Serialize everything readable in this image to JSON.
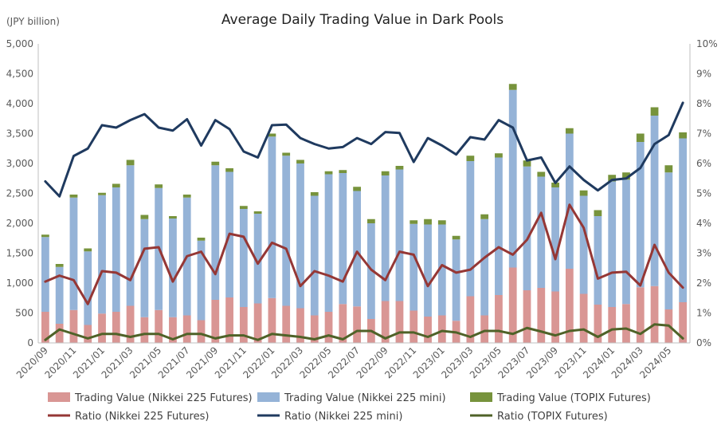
{
  "chart_data": {
    "type": "bar",
    "title": "Average Daily Trading Value in Dark Pools",
    "ylabel_left": "(JPY billion)",
    "ylim_left": [
      0,
      5000
    ],
    "yticks_left": [
      "0",
      "500",
      "1,000",
      "1,500",
      "2,000",
      "2,500",
      "3,000",
      "3,500",
      "4,000",
      "4,500",
      "5,000"
    ],
    "ylim_right": [
      0,
      10
    ],
    "yticks_right": [
      "0%",
      "1%",
      "2%",
      "3%",
      "4%",
      "5%",
      "6%",
      "7%",
      "8%",
      "9%",
      "10%"
    ],
    "xtick_labels": [
      "2020/09",
      "2020/11",
      "2021/01",
      "2021/03",
      "2021/05",
      "2021/07",
      "2021/09",
      "2021/11",
      "2022/01",
      "2022/03",
      "2022/05",
      "2022/07",
      "2022/09",
      "2022/11",
      "2023/01",
      "2023/03",
      "2023/05",
      "2023/07",
      "2023/09",
      "2023/11",
      "2024/01",
      "2024/03",
      "2024/05"
    ],
    "bar_series": [
      {
        "name": "Trading Value (Nikkei 225 Futures)",
        "color": "#d99694",
        "values": [
          520,
          320,
          550,
          300,
          490,
          520,
          620,
          430,
          550,
          430,
          460,
          380,
          720,
          760,
          600,
          660,
          750,
          620,
          580,
          460,
          520,
          650,
          610,
          400,
          700,
          700,
          540,
          440,
          460,
          370,
          780,
          460,
          800,
          1260,
          880,
          920,
          860,
          1240,
          820,
          640,
          600,
          650,
          930,
          950,
          560,
          680
        ]
      },
      {
        "name": "Trading Value (Nikkei 225 mini)",
        "color": "#95b3d7",
        "values": [
          1250,
          950,
          1880,
          1230,
          1980,
          2080,
          2350,
          1640,
          2040,
          1650,
          1970,
          1330,
          2250,
          2100,
          1640,
          1500,
          2700,
          2510,
          2420,
          2000,
          2300,
          2190,
          1930,
          1600,
          2100,
          2200,
          1450,
          1540,
          1520,
          1360,
          2260,
          1610,
          2300,
          2970,
          2070,
          1860,
          1740,
          2260,
          1640,
          1480,
          2100,
          2080,
          2430,
          2850,
          2290,
          2740
        ]
      },
      {
        "name": "Trading Value (TOPIX Futures)",
        "color": "#77933c",
        "values": [
          40,
          50,
          50,
          50,
          40,
          60,
          90,
          70,
          60,
          40,
          50,
          50,
          60,
          60,
          50,
          40,
          50,
          50,
          60,
          60,
          50,
          50,
          70,
          70,
          70,
          60,
          60,
          90,
          70,
          60,
          90,
          80,
          70,
          100,
          100,
          80,
          80,
          90,
          90,
          100,
          110,
          120,
          140,
          140,
          120,
          100
        ]
      }
    ],
    "line_series": [
      {
        "name": "Ratio (Nikkei 225 Futures)",
        "color": "#953735",
        "values": [
          2.05,
          2.25,
          2.1,
          1.3,
          2.4,
          2.35,
          2.1,
          3.15,
          3.2,
          2.05,
          2.9,
          3.05,
          2.3,
          3.65,
          3.55,
          2.65,
          3.35,
          3.15,
          1.9,
          2.4,
          2.25,
          2.05,
          3.05,
          2.45,
          2.1,
          3.05,
          2.95,
          1.9,
          2.6,
          2.35,
          2.45,
          2.85,
          3.2,
          2.95,
          3.45,
          4.35,
          2.8,
          4.62,
          3.85,
          2.15,
          2.35,
          2.38,
          1.92,
          3.28,
          2.35,
          1.85
        ]
      },
      {
        "name": "Ratio (Nikkei 225 mini)",
        "color": "#1f3a5f",
        "values": [
          5.4,
          4.9,
          6.25,
          6.5,
          7.28,
          7.2,
          7.45,
          7.65,
          7.2,
          7.1,
          7.48,
          6.6,
          7.45,
          7.15,
          6.4,
          6.2,
          7.28,
          7.3,
          6.85,
          6.65,
          6.5,
          6.55,
          6.85,
          6.65,
          7.05,
          7.02,
          6.05,
          6.85,
          6.6,
          6.3,
          6.88,
          6.8,
          7.45,
          7.2,
          6.1,
          6.2,
          5.35,
          5.9,
          5.45,
          5.1,
          5.45,
          5.5,
          5.85,
          6.65,
          6.95,
          8.03
        ]
      },
      {
        "name": "Ratio (TOPIX Futures)",
        "color": "#4f6228",
        "values": [
          0.1,
          0.45,
          0.3,
          0.15,
          0.3,
          0.3,
          0.2,
          0.3,
          0.3,
          0.12,
          0.3,
          0.3,
          0.15,
          0.25,
          0.25,
          0.1,
          0.3,
          0.25,
          0.2,
          0.12,
          0.25,
          0.12,
          0.4,
          0.4,
          0.15,
          0.35,
          0.35,
          0.2,
          0.4,
          0.35,
          0.2,
          0.4,
          0.4,
          0.3,
          0.5,
          0.38,
          0.25,
          0.4,
          0.45,
          0.2,
          0.45,
          0.48,
          0.3,
          0.62,
          0.58,
          0.15
        ]
      }
    ],
    "legend_position": "bottom",
    "grid": false
  }
}
